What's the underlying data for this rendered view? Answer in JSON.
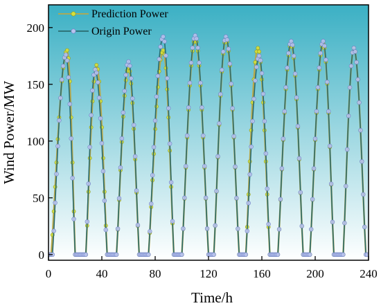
{
  "chart_data": {
    "type": "line",
    "title": "",
    "xlabel": "Time/h",
    "ylabel": "Wind Power/MW",
    "xlim": [
      0,
      240
    ],
    "ylim": [
      -5,
      220
    ],
    "x_ticks": [
      0,
      40,
      80,
      120,
      160,
      200,
      240
    ],
    "y_ticks": [
      0,
      50,
      100,
      150,
      200
    ],
    "legend_position": "top-left",
    "background_gradient": [
      "#3bb0c4",
      "#ffffff"
    ],
    "series": [
      {
        "name": "Prediction Power",
        "color": "#b8a84a",
        "marker_color": "#d6e03a",
        "peaks": [
          {
            "start": 2,
            "peak_time": 14,
            "peak": 180,
            "end": 20
          },
          {
            "start": 28,
            "peak_time": 36,
            "peak": 167,
            "end": 44
          },
          {
            "start": 51,
            "peak_time": 60,
            "peak": 165,
            "end": 68
          },
          {
            "start": 75,
            "peak_time": 86,
            "peak": 180,
            "end": 94
          },
          {
            "start": 100,
            "peak_time": 110,
            "peak": 190,
            "end": 120
          },
          {
            "start": 124,
            "peak_time": 133,
            "peak": 190,
            "end": 143
          },
          {
            "start": 148,
            "peak_time": 157,
            "peak": 182,
            "end": 166
          },
          {
            "start": 172,
            "peak_time": 182,
            "peak": 186,
            "end": 191
          },
          {
            "start": 196,
            "peak_time": 206,
            "peak": 186,
            "end": 214
          },
          {
            "start": 221,
            "peak_time": 229,
            "peak": 182,
            "end": 238
          }
        ]
      },
      {
        "name": "Origin Power",
        "color": "#2a6b6e",
        "marker_color": "#b9c3ee",
        "peaks": [
          {
            "start": 3,
            "peak_time": 13,
            "peak": 176,
            "end": 20
          },
          {
            "start": 28,
            "peak_time": 35,
            "peak": 163,
            "end": 44
          },
          {
            "start": 51,
            "peak_time": 60,
            "peak": 170,
            "end": 68
          },
          {
            "start": 75,
            "peak_time": 86,
            "peak": 192,
            "end": 94
          },
          {
            "start": 100,
            "peak_time": 110,
            "peak": 193,
            "end": 120
          },
          {
            "start": 124,
            "peak_time": 133,
            "peak": 192,
            "end": 143
          },
          {
            "start": 148,
            "peak_time": 158,
            "peak": 175,
            "end": 166
          },
          {
            "start": 172,
            "peak_time": 182,
            "peak": 188,
            "end": 191
          },
          {
            "start": 196,
            "peak_time": 206,
            "peak": 188,
            "end": 214
          },
          {
            "start": 221,
            "peak_time": 229,
            "peak": 182,
            "end": 238
          }
        ]
      }
    ]
  }
}
